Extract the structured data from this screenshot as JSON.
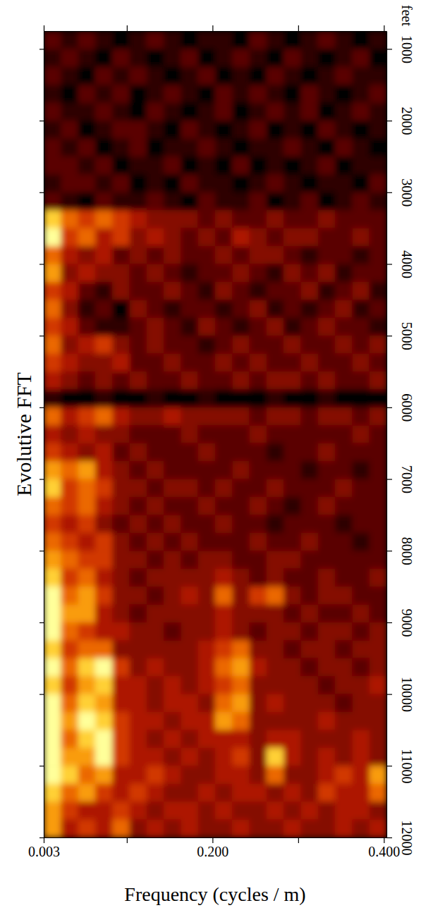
{
  "chart_data": {
    "type": "heatmap",
    "title": "Evolutive FFT",
    "x_label": "Frequency (cycles / m)",
    "y_label": "feet",
    "xlim": [
      0.003,
      0.403
    ],
    "ylim": [
      750,
      12000
    ],
    "xticks": [
      {
        "value": 0.003,
        "label": "0.003"
      },
      {
        "value": 0.1,
        "label": null
      },
      {
        "value": 0.2,
        "label": "0.200"
      },
      {
        "value": 0.3,
        "label": null
      },
      {
        "value": 0.4,
        "label": "0.400"
      }
    ],
    "yticks": [
      1000,
      2000,
      3000,
      4000,
      5000,
      6000,
      7000,
      8000,
      9000,
      10000,
      11000,
      12000
    ],
    "x": [
      0.013,
      0.033,
      0.053,
      0.073,
      0.093,
      0.113,
      0.133,
      0.153,
      0.173,
      0.193,
      0.213,
      0.233,
      0.253,
      0.273,
      0.293,
      0.313,
      0.333,
      0.353,
      0.373,
      0.393
    ],
    "y": [
      875,
      1125,
      1375,
      1625,
      1875,
      2125,
      2375,
      2625,
      2875,
      3125,
      3375,
      3625,
      3875,
      4125,
      4375,
      4625,
      4875,
      5125,
      5375,
      5625,
      5875,
      6125,
      6375,
      6625,
      6875,
      7125,
      7375,
      7625,
      7875,
      8125,
      8375,
      8625,
      8875,
      9125,
      9375,
      9625,
      9875,
      10125,
      10375,
      10625,
      10875,
      11125,
      11375,
      11625,
      11875
    ],
    "z": [
      [
        2,
        1,
        2,
        1,
        0,
        1,
        2,
        1,
        0,
        1,
        1,
        0,
        2,
        1,
        0,
        1,
        2,
        1,
        0,
        1
      ],
      [
        1,
        2,
        1,
        0,
        2,
        1,
        0,
        1,
        2,
        0,
        1,
        2,
        1,
        0,
        2,
        1,
        0,
        1,
        2,
        0
      ],
      [
        2,
        1,
        0,
        2,
        1,
        2,
        1,
        0,
        1,
        2,
        0,
        1,
        0,
        2,
        1,
        0,
        1,
        2,
        1,
        1
      ],
      [
        1,
        0,
        2,
        1,
        2,
        0,
        1,
        2,
        1,
        0,
        2,
        1,
        2,
        1,
        0,
        2,
        1,
        0,
        1,
        2
      ],
      [
        2,
        1,
        1,
        2,
        1,
        0,
        2,
        1,
        0,
        1,
        2,
        0,
        1,
        2,
        1,
        2,
        0,
        1,
        2,
        1
      ],
      [
        1,
        2,
        0,
        1,
        2,
        2,
        1,
        0,
        2,
        1,
        0,
        1,
        2,
        0,
        1,
        0,
        2,
        1,
        0,
        1
      ],
      [
        2,
        1,
        2,
        0,
        1,
        2,
        0,
        1,
        1,
        2,
        1,
        0,
        1,
        1,
        2,
        1,
        0,
        2,
        1,
        0
      ],
      [
        2,
        2,
        1,
        2,
        0,
        1,
        1,
        2,
        0,
        1,
        0,
        2,
        0,
        1,
        0,
        1,
        2,
        0,
        1,
        1
      ],
      [
        1,
        2,
        2,
        1,
        2,
        0,
        1,
        0,
        2,
        1,
        1,
        0,
        1,
        2,
        1,
        0,
        1,
        1,
        0,
        2
      ],
      [
        2,
        1,
        0,
        2,
        1,
        1,
        2,
        1,
        0,
        2,
        1,
        1,
        2,
        0,
        1,
        2,
        0,
        1,
        2,
        1
      ],
      [
        8,
        6,
        5,
        6,
        5,
        4,
        3,
        3,
        3,
        2,
        3,
        2,
        2,
        3,
        2,
        2,
        3,
        2,
        2,
        2
      ],
      [
        9,
        5,
        6,
        4,
        5,
        3,
        4,
        3,
        2,
        3,
        2,
        4,
        3,
        2,
        3,
        3,
        2,
        2,
        3,
        2
      ],
      [
        6,
        4,
        3,
        4,
        2,
        3,
        2,
        3,
        2,
        2,
        3,
        2,
        3,
        3,
        2,
        1,
        2,
        2,
        1,
        2
      ],
      [
        7,
        3,
        4,
        3,
        3,
        2,
        3,
        2,
        1,
        2,
        2,
        3,
        2,
        1,
        3,
        2,
        3,
        1,
        2,
        2
      ],
      [
        5,
        4,
        2,
        1,
        3,
        2,
        2,
        3,
        2,
        1,
        3,
        2,
        1,
        2,
        2,
        3,
        1,
        2,
        3,
        1
      ],
      [
        6,
        3,
        1,
        2,
        0,
        3,
        2,
        1,
        2,
        2,
        1,
        2,
        3,
        1,
        2,
        1,
        2,
        3,
        1,
        2
      ],
      [
        5,
        4,
        2,
        1,
        1,
        2,
        3,
        2,
        1,
        3,
        2,
        1,
        2,
        3,
        1,
        2,
        3,
        2,
        2,
        1
      ],
      [
        6,
        3,
        4,
        5,
        3,
        2,
        3,
        2,
        2,
        1,
        2,
        3,
        2,
        2,
        3,
        2,
        2,
        3,
        2,
        3
      ],
      [
        5,
        4,
        3,
        3,
        4,
        2,
        2,
        3,
        2,
        2,
        3,
        2,
        3,
        2,
        2,
        3,
        2,
        2,
        3,
        2
      ],
      [
        4,
        3,
        2,
        3,
        2,
        3,
        2,
        2,
        3,
        2,
        2,
        3,
        2,
        3,
        3,
        2,
        3,
        2,
        2,
        3
      ],
      [
        1,
        0,
        0,
        1,
        0,
        0,
        1,
        0,
        0,
        1,
        0,
        0,
        0,
        1,
        0,
        0,
        1,
        0,
        0,
        0
      ],
      [
        6,
        4,
        5,
        6,
        4,
        3,
        3,
        4,
        3,
        3,
        3,
        3,
        2,
        3,
        3,
        2,
        3,
        3,
        2,
        3
      ],
      [
        4,
        3,
        4,
        3,
        3,
        2,
        2,
        2,
        3,
        2,
        2,
        2,
        3,
        2,
        2,
        2,
        2,
        2,
        3,
        2
      ],
      [
        5,
        4,
        3,
        4,
        2,
        3,
        2,
        2,
        2,
        3,
        2,
        2,
        2,
        1,
        2,
        2,
        3,
        2,
        2,
        2
      ],
      [
        7,
        6,
        7,
        4,
        3,
        2,
        3,
        2,
        2,
        2,
        2,
        3,
        2,
        2,
        2,
        1,
        2,
        2,
        1,
        2
      ],
      [
        8,
        5,
        6,
        5,
        3,
        3,
        2,
        3,
        3,
        2,
        3,
        2,
        2,
        3,
        2,
        2,
        2,
        3,
        2,
        2
      ],
      [
        6,
        5,
        6,
        4,
        3,
        2,
        3,
        2,
        2,
        3,
        2,
        2,
        3,
        2,
        1,
        2,
        3,
        2,
        2,
        2
      ],
      [
        5,
        4,
        5,
        3,
        2,
        3,
        2,
        3,
        2,
        2,
        3,
        2,
        2,
        1,
        2,
        2,
        2,
        1,
        2,
        2
      ],
      [
        6,
        5,
        4,
        5,
        3,
        2,
        3,
        2,
        3,
        2,
        2,
        2,
        3,
        2,
        2,
        3,
        2,
        2,
        1,
        2
      ],
      [
        7,
        6,
        5,
        5,
        3,
        3,
        2,
        3,
        2,
        3,
        3,
        2,
        2,
        3,
        3,
        2,
        2,
        2,
        2,
        2
      ],
      [
        8,
        5,
        6,
        4,
        3,
        2,
        3,
        3,
        3,
        3,
        4,
        3,
        2,
        3,
        2,
        2,
        3,
        2,
        2,
        3
      ],
      [
        9,
        6,
        7,
        5,
        3,
        3,
        2,
        3,
        4,
        3,
        6,
        3,
        5,
        6,
        3,
        2,
        3,
        3,
        2,
        2
      ],
      [
        9,
        7,
        7,
        4,
        3,
        2,
        3,
        3,
        3,
        3,
        4,
        3,
        3,
        3,
        2,
        3,
        2,
        2,
        3,
        2
      ],
      [
        9,
        6,
        5,
        4,
        4,
        3,
        3,
        2,
        3,
        3,
        4,
        3,
        2,
        3,
        3,
        2,
        3,
        3,
        2,
        3
      ],
      [
        8,
        5,
        6,
        6,
        3,
        3,
        3,
        3,
        3,
        4,
        5,
        6,
        3,
        3,
        2,
        3,
        3,
        2,
        3,
        3
      ],
      [
        9,
        6,
        8,
        9,
        5,
        3,
        4,
        3,
        3,
        4,
        6,
        7,
        4,
        3,
        3,
        2,
        3,
        3,
        2,
        3
      ],
      [
        8,
        5,
        7,
        8,
        4,
        4,
        3,
        4,
        3,
        4,
        5,
        6,
        3,
        3,
        3,
        3,
        2,
        3,
        3,
        4
      ],
      [
        9,
        6,
        8,
        7,
        4,
        4,
        3,
        4,
        4,
        3,
        6,
        7,
        3,
        4,
        3,
        3,
        3,
        2,
        3,
        3
      ],
      [
        9,
        7,
        9,
        8,
        5,
        4,
        4,
        3,
        4,
        4,
        7,
        6,
        3,
        3,
        3,
        3,
        4,
        3,
        3,
        3
      ],
      [
        9,
        6,
        8,
        9,
        5,
        4,
        3,
        4,
        3,
        4,
        4,
        4,
        3,
        4,
        4,
        3,
        3,
        3,
        4,
        3
      ],
      [
        9,
        7,
        7,
        9,
        5,
        4,
        4,
        3,
        4,
        3,
        4,
        5,
        3,
        8,
        4,
        3,
        4,
        3,
        4,
        3
      ],
      [
        9,
        8,
        6,
        7,
        4,
        4,
        5,
        4,
        3,
        3,
        4,
        4,
        3,
        6,
        3,
        3,
        4,
        5,
        4,
        7
      ],
      [
        8,
        6,
        7,
        5,
        4,
        5,
        4,
        3,
        3,
        4,
        3,
        4,
        4,
        3,
        4,
        3,
        5,
        4,
        4,
        6
      ],
      [
        7,
        5,
        4,
        4,
        5,
        4,
        3,
        4,
        4,
        3,
        4,
        3,
        3,
        4,
        3,
        4,
        3,
        4,
        4,
        3
      ],
      [
        7,
        4,
        5,
        4,
        6,
        3,
        4,
        3,
        4,
        3,
        3,
        4,
        3,
        3,
        4,
        3,
        3,
        4,
        3,
        4
      ]
    ]
  }
}
